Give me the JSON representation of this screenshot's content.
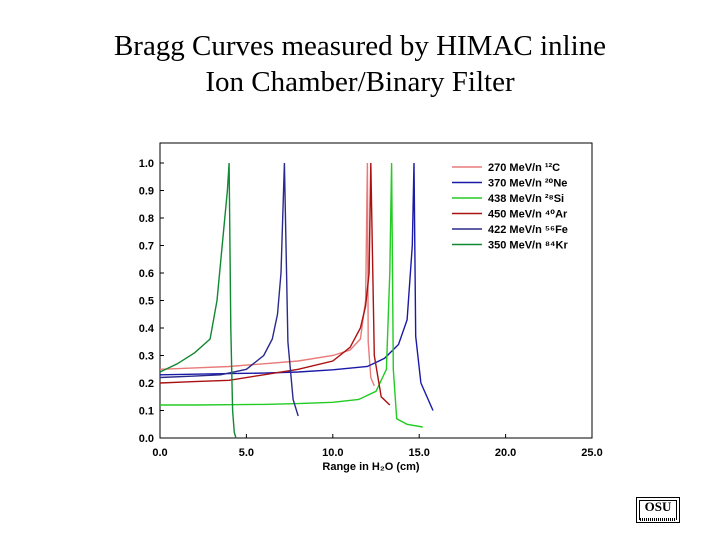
{
  "title": {
    "line1": "Bragg Curves measured by HIMAC inline",
    "line2": "Ion Chamber/Binary Filter"
  },
  "logo": {
    "text": "OSU"
  },
  "chart_data": {
    "type": "line",
    "title": "",
    "xlabel": "Range in H₂O (cm)",
    "ylabel": "",
    "xlim": [
      0,
      25
    ],
    "ylim": [
      0,
      1.0
    ],
    "xticks": [
      "0.0",
      "5.0",
      "10.0",
      "15.0",
      "20.0",
      "25.0"
    ],
    "yticks": [
      "0.0",
      "0.1",
      "0.2",
      "0.3",
      "0.4",
      "0.5",
      "0.6",
      "0.7",
      "0.8",
      "0.9",
      "1.0"
    ],
    "legend_position": "top-right",
    "grid": false,
    "series": [
      {
        "name": "270 MeV/n ¹²C",
        "color": "#e87a7a",
        "x": [
          0,
          2,
          4,
          6,
          8,
          10,
          11,
          11.6,
          11.9,
          12.0,
          12.05,
          12.2,
          12.4
        ],
        "y": [
          0.25,
          0.255,
          0.26,
          0.27,
          0.28,
          0.3,
          0.32,
          0.36,
          0.5,
          1.0,
          0.35,
          0.22,
          0.19
        ]
      },
      {
        "name": "370 MeV/n ²⁰Ne",
        "color": "#1a1aa8",
        "x": [
          0,
          2,
          4,
          6,
          8,
          10,
          12,
          13,
          13.8,
          14.3,
          14.6,
          14.7,
          14.8,
          15.1,
          15.8
        ],
        "y": [
          0.23,
          0.232,
          0.234,
          0.236,
          0.24,
          0.248,
          0.26,
          0.29,
          0.34,
          0.43,
          0.7,
          1.0,
          0.37,
          0.2,
          0.1
        ]
      },
      {
        "name": "438 MeV/n ²⁸Si",
        "color": "#22cc22",
        "x": [
          0,
          2,
          4,
          6,
          8,
          10,
          11.5,
          12.5,
          13.1,
          13.3,
          13.4,
          13.5,
          13.7,
          14.3,
          15.2
        ],
        "y": [
          0.12,
          0.12,
          0.121,
          0.122,
          0.125,
          0.13,
          0.14,
          0.17,
          0.25,
          0.6,
          1.0,
          0.25,
          0.07,
          0.05,
          0.04
        ]
      },
      {
        "name": "450 MeV/n ⁴⁰Ar",
        "color": "#aa1111",
        "x": [
          0,
          2,
          4,
          6,
          8,
          10,
          11,
          11.6,
          11.9,
          12.1,
          12.2,
          12.4,
          12.8,
          13.3
        ],
        "y": [
          0.2,
          0.205,
          0.21,
          0.23,
          0.25,
          0.28,
          0.33,
          0.4,
          0.48,
          0.6,
          1.0,
          0.3,
          0.15,
          0.12
        ]
      },
      {
        "name": "422 MeV/n ⁵⁶Fe",
        "color": "#2a2a8c",
        "x": [
          0,
          2,
          3.5,
          5,
          6,
          6.5,
          6.8,
          7.0,
          7.1,
          7.2,
          7.4,
          7.7,
          8.0
        ],
        "y": [
          0.22,
          0.225,
          0.23,
          0.25,
          0.3,
          0.36,
          0.45,
          0.6,
          0.8,
          1.0,
          0.35,
          0.14,
          0.08
        ]
      },
      {
        "name": "350 MeV/n ⁸⁴Kr",
        "color": "#118833",
        "x": [
          0,
          1,
          2,
          2.9,
          3.3,
          3.6,
          3.9,
          4.0,
          4.1,
          4.2,
          4.3,
          4.4
        ],
        "y": [
          0.24,
          0.27,
          0.31,
          0.36,
          0.5,
          0.7,
          0.9,
          1.0,
          0.4,
          0.1,
          0.02,
          0.0
        ]
      }
    ]
  }
}
